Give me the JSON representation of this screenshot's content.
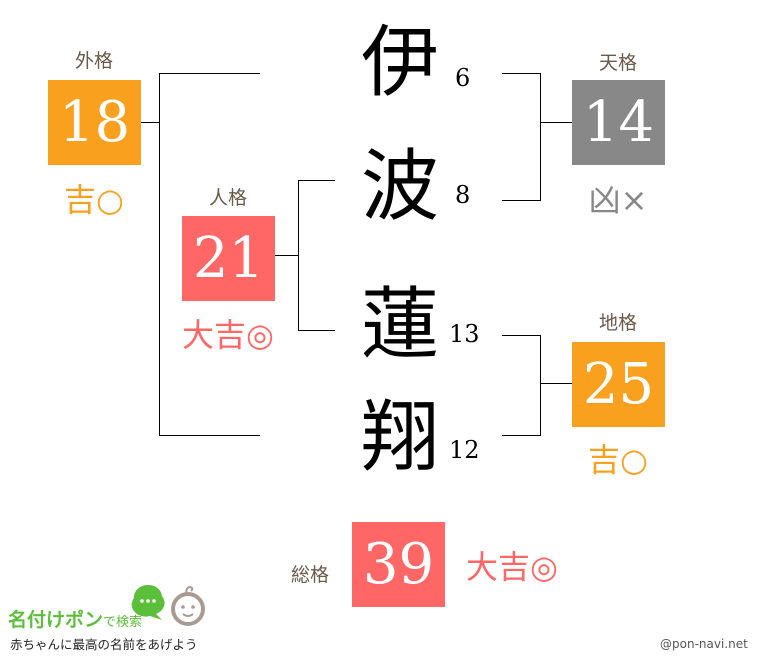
{
  "colors": {
    "kichi": "#f9a11e",
    "daikichi": "#ff6666",
    "kyo": "#888888",
    "label": "#6b5a4a"
  },
  "name_chars": [
    {
      "char": "伊",
      "strokes": "6"
    },
    {
      "char": "波",
      "strokes": "8"
    },
    {
      "char": "蓮",
      "strokes": "13"
    },
    {
      "char": "翔",
      "strokes": "12"
    }
  ],
  "gaikaku": {
    "label": "外格",
    "value": "18",
    "result": "吉○"
  },
  "jinkaku": {
    "label": "人格",
    "value": "21",
    "result": "大吉◎"
  },
  "tenkaku": {
    "label": "天格",
    "value": "14",
    "result": "凶×"
  },
  "chikaku": {
    "label": "地格",
    "value": "25",
    "result": "吉○"
  },
  "soukaku": {
    "label": "総格",
    "value": "39",
    "result": "大吉◎"
  },
  "logo": {
    "brand": "名付けポン",
    "suffix": "で検索",
    "tagline": "赤ちゃんに最高の名前をあげよう"
  },
  "credit": "@pon-navi.net"
}
